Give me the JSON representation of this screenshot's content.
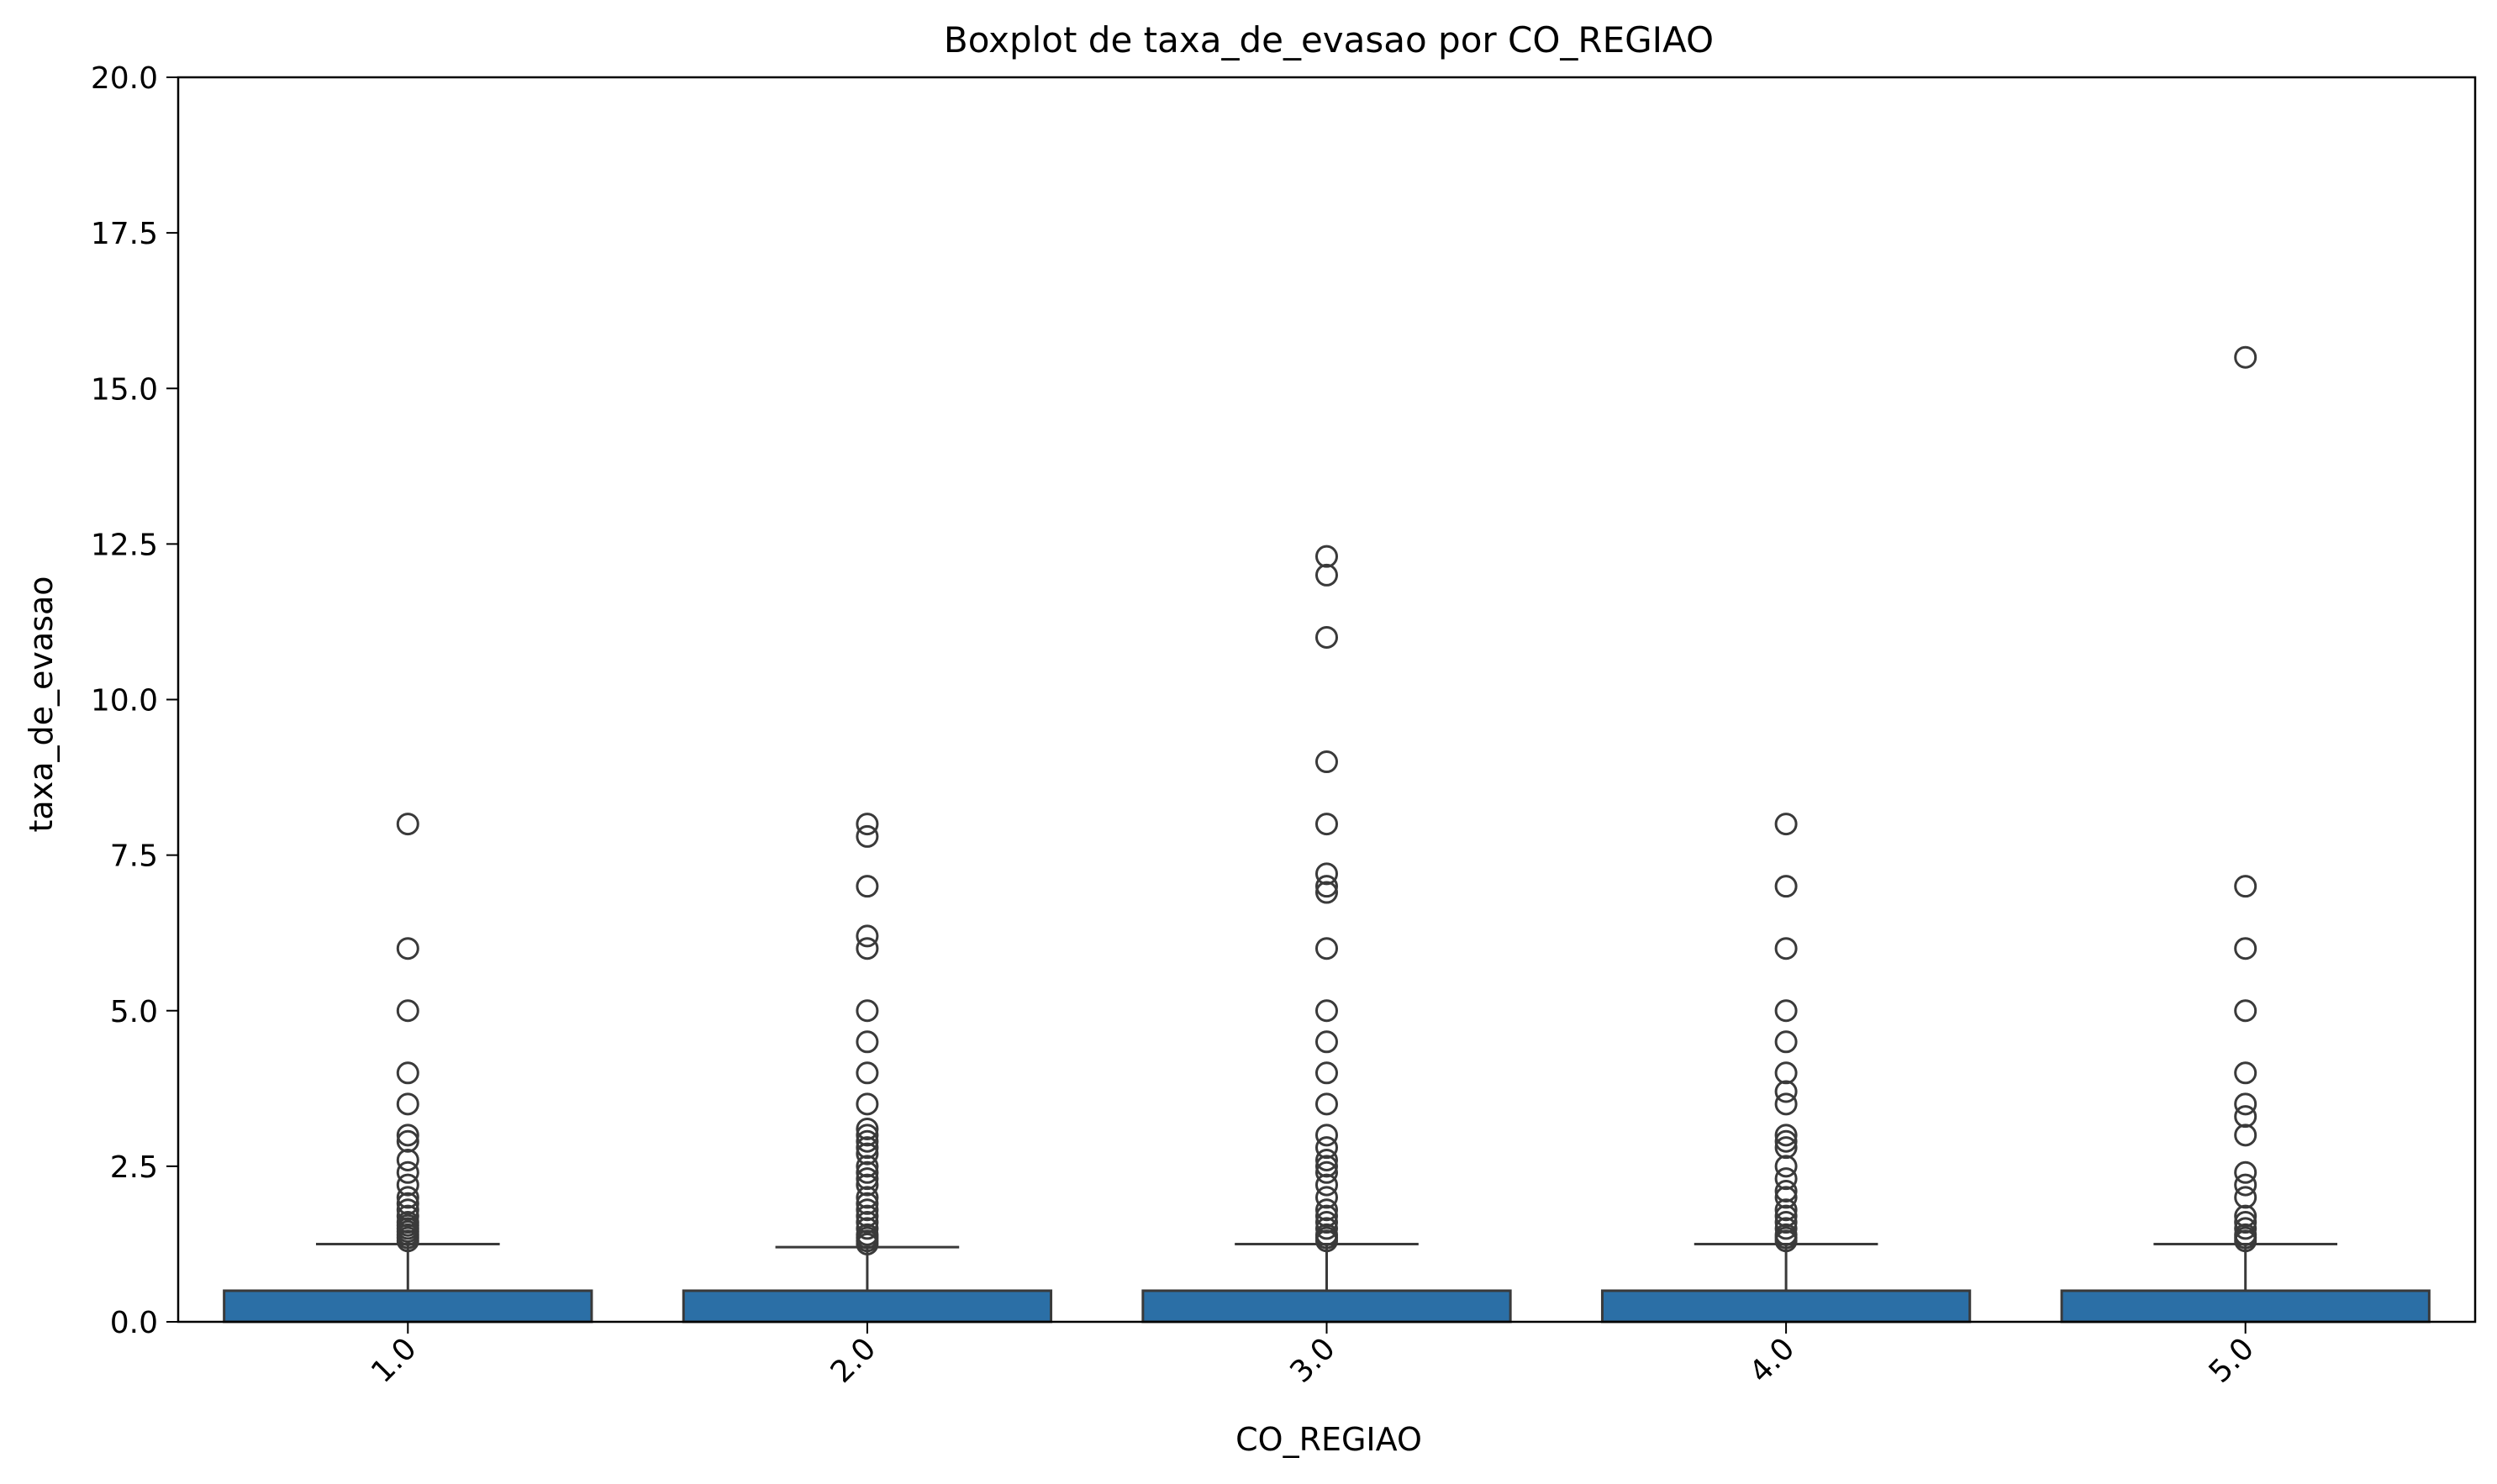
{
  "chart_data": {
    "type": "box",
    "title": "Boxplot de taxa_de_evasao por CO_REGIAO",
    "xlabel": "CO_REGIAO",
    "ylabel": "taxa_de_evasao",
    "ylim": [
      0,
      20
    ],
    "yticks": [
      "0.0",
      "2.5",
      "5.0",
      "7.5",
      "10.0",
      "12.5",
      "15.0",
      "17.5",
      "20.0"
    ],
    "categories": [
      "1.0",
      "2.0",
      "3.0",
      "4.0",
      "5.0"
    ],
    "box_color": "#2b6fa6",
    "edge_color": "#3a3a3a",
    "grid": false,
    "boxes": [
      {
        "category": "1.0",
        "whislo": 0.0,
        "q1": 0.0,
        "med": 0.0,
        "q3": 0.5,
        "whishi": 1.25,
        "fliers": [
          1.3,
          1.35,
          1.4,
          1.45,
          1.5,
          1.55,
          1.6,
          1.7,
          1.8,
          1.9,
          2.0,
          2.2,
          2.4,
          2.6,
          2.9,
          3.0,
          3.5,
          4.0,
          5.0,
          6.0,
          8.0
        ]
      },
      {
        "category": "2.0",
        "whislo": 0.0,
        "q1": 0.0,
        "med": 0.0,
        "q3": 0.5,
        "whishi": 1.2,
        "fliers": [
          1.25,
          1.3,
          1.35,
          1.4,
          1.5,
          1.6,
          1.7,
          1.8,
          1.9,
          2.0,
          2.2,
          2.3,
          2.4,
          2.5,
          2.7,
          2.8,
          2.9,
          3.0,
          3.1,
          3.5,
          4.0,
          4.5,
          5.0,
          6.0,
          6.2,
          7.0,
          7.8,
          8.0
        ]
      },
      {
        "category": "3.0",
        "whislo": 0.0,
        "q1": 0.0,
        "med": 0.0,
        "q3": 0.5,
        "whishi": 1.25,
        "fliers": [
          1.3,
          1.35,
          1.4,
          1.5,
          1.6,
          1.7,
          1.8,
          2.0,
          2.2,
          2.4,
          2.5,
          2.6,
          2.8,
          3.0,
          3.5,
          4.0,
          4.5,
          5.0,
          6.0,
          6.9,
          7.0,
          7.2,
          8.0,
          9.0,
          11.0,
          12.0,
          12.3
        ]
      },
      {
        "category": "4.0",
        "whislo": 0.0,
        "q1": 0.0,
        "med": 0.0,
        "q3": 0.5,
        "whishi": 1.25,
        "fliers": [
          1.3,
          1.35,
          1.4,
          1.5,
          1.6,
          1.7,
          1.8,
          2.0,
          2.1,
          2.3,
          2.5,
          2.8,
          2.9,
          3.0,
          3.5,
          3.7,
          4.0,
          4.5,
          5.0,
          6.0,
          7.0,
          8.0
        ]
      },
      {
        "category": "5.0",
        "whislo": 0.0,
        "q1": 0.0,
        "med": 0.0,
        "q3": 0.5,
        "whishi": 1.25,
        "fliers": [
          1.3,
          1.35,
          1.4,
          1.5,
          1.6,
          1.7,
          2.0,
          2.2,
          2.4,
          3.0,
          3.3,
          3.5,
          4.0,
          5.0,
          6.0,
          7.0,
          15.5
        ]
      }
    ]
  }
}
